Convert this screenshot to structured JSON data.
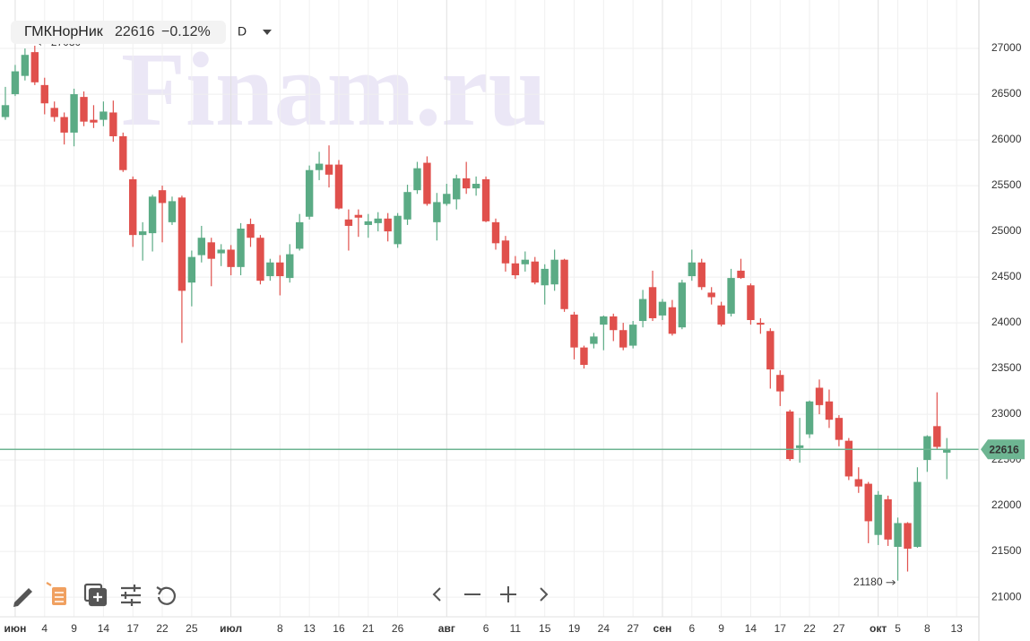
{
  "chart_data": {
    "type": "candlestick",
    "title": "ГМКНорНик",
    "price": 22616,
    "change": {
      "value": -0.12,
      "label": "−0.12%"
    },
    "interval": "D",
    "watermark": "Finam.ru",
    "categories": [
      null,
      "июн",
      null,
      null,
      "4",
      null,
      null,
      "9",
      null,
      null,
      "14",
      null,
      null,
      "17",
      null,
      null,
      "22",
      null,
      null,
      "25",
      null,
      null,
      null,
      "июл",
      null,
      null,
      null,
      null,
      "8",
      null,
      null,
      "13",
      null,
      null,
      "16",
      null,
      null,
      "21",
      null,
      null,
      "26",
      null,
      null,
      null,
      null,
      "авг",
      null,
      null,
      null,
      "6",
      null,
      null,
      "11",
      null,
      null,
      "15",
      null,
      null,
      "19",
      null,
      null,
      "24",
      null,
      null,
      "27",
      null,
      null,
      "сен",
      null,
      null,
      "6",
      null,
      null,
      "9",
      null,
      null,
      "14",
      null,
      null,
      "17",
      null,
      null,
      "22",
      null,
      null,
      "27",
      null,
      null,
      null,
      "окт",
      null,
      "5",
      null,
      null,
      "8",
      null,
      null,
      "13"
    ],
    "open": [
      26250,
      26500,
      26700,
      26960,
      26600,
      26350,
      26250,
      26080,
      26470,
      26220,
      26220,
      26300,
      26040,
      25570,
      24960,
      24980,
      25450,
      25100,
      25370,
      24440,
      24740,
      24880,
      24760,
      24800,
      24610,
      25080,
      24930,
      24510,
      24660,
      24490,
      24810,
      25160,
      25670,
      25730,
      25730,
      25130,
      25180,
      25070,
      25090,
      25140,
      24860,
      25130,
      25450,
      25750,
      25100,
      25300,
      25350,
      25580,
      25470,
      25570,
      25100,
      24900,
      24650,
      24640,
      24670,
      24410,
      24420,
      24690,
      24090,
      23730,
      23770,
      23980,
      24070,
      23920,
      23750,
      24020,
      24390,
      24080,
      24170,
      23950,
      24510,
      24660,
      24330,
      24190,
      24100,
      24570,
      24410,
      24000,
      23910,
      23430,
      23030,
      22630,
      22780,
      23290,
      23140,
      22960,
      22710,
      22290,
      22240,
      21680,
      22070,
      21550,
      21810,
      21550,
      22500,
      22870,
      22580,
      null
    ],
    "high": [
      26580,
      26820,
      27000,
      27030,
      26680,
      26420,
      26300,
      26560,
      26530,
      26380,
      26420,
      26430,
      26080,
      25600,
      25100,
      25400,
      25500,
      25380,
      25390,
      24790,
      25060,
      24930,
      24860,
      24850,
      25090,
      25140,
      24960,
      24700,
      24740,
      24860,
      25190,
      25720,
      25870,
      25940,
      25780,
      25240,
      25240,
      25190,
      25210,
      25200,
      25200,
      25510,
      25760,
      25820,
      25420,
      25520,
      25620,
      25760,
      25600,
      25600,
      25140,
      24950,
      24730,
      24780,
      24720,
      24640,
      24800,
      24700,
      24120,
      23750,
      23890,
      24080,
      24100,
      24000,
      24020,
      24360,
      24570,
      24260,
      24250,
      24470,
      24800,
      24700,
      24390,
      24230,
      24590,
      24700,
      24430,
      24050,
      23940,
      23480,
      23050,
      22960,
      23150,
      23380,
      23270,
      22990,
      22740,
      22420,
      22260,
      22160,
      22110,
      21870,
      21820,
      22420,
      22770,
      23240,
      22740,
      null
    ],
    "low": [
      26220,
      26480,
      26650,
      26600,
      26280,
      26200,
      25950,
      25930,
      26150,
      26130,
      26150,
      25980,
      25650,
      24830,
      24680,
      24780,
      24880,
      25070,
      23780,
      24180,
      24660,
      24400,
      24620,
      24520,
      24520,
      24830,
      24420,
      24460,
      24300,
      24440,
      24790,
      25130,
      25560,
      25480,
      25240,
      24790,
      24940,
      24930,
      25000,
      24890,
      24820,
      25070,
      25410,
      25280,
      24900,
      25280,
      25240,
      25410,
      25390,
      25100,
      24800,
      24560,
      24480,
      24560,
      24420,
      24200,
      24350,
      24120,
      23600,
      23500,
      23720,
      23700,
      23800,
      23700,
      23720,
      23950,
      24020,
      24030,
      23860,
      23930,
      24460,
      24360,
      24200,
      23960,
      24070,
      24480,
      23980,
      23880,
      23280,
      23090,
      22490,
      22470,
      22740,
      23000,
      22850,
      22650,
      22280,
      22140,
      21590,
      21570,
      21560,
      21180,
      21280,
      21540,
      22370,
      22620,
      22290,
      null
    ],
    "close": [
      26380,
      26750,
      26930,
      26630,
      26400,
      26250,
      26080,
      26500,
      26200,
      26190,
      26310,
      26040,
      25670,
      24960,
      25000,
      25380,
      25310,
      25330,
      24350,
      24720,
      24930,
      24700,
      24800,
      24610,
      25030,
      24930,
      24460,
      24660,
      24510,
      24750,
      25100,
      25670,
      25740,
      25620,
      25250,
      25060,
      25150,
      25110,
      25140,
      25000,
      25170,
      25430,
      25690,
      25300,
      25320,
      25410,
      25580,
      25470,
      25520,
      25110,
      24870,
      24650,
      24520,
      24690,
      24440,
      24590,
      24690,
      24150,
      23730,
      23540,
      23850,
      24070,
      23920,
      23730,
      23980,
      24260,
      24050,
      24230,
      23880,
      24440,
      24660,
      24390,
      24280,
      23980,
      24490,
      24490,
      24030,
      23980,
      23490,
      23250,
      22510,
      22660,
      23140,
      23100,
      22940,
      22720,
      22320,
      22210,
      21830,
      22120,
      21630,
      21810,
      21530,
      22260,
      22760,
      22643,
      22616,
      null
    ],
    "up_color": "#5bab85",
    "down_color": "#e0504c",
    "price_line": 22616,
    "price_line_color": "#6db592",
    "annotations": {
      "high": 27030,
      "low": 21180
    },
    "ylim": [
      20790,
      27530
    ],
    "yticks": [
      21000,
      21500,
      22000,
      22500,
      23000,
      23500,
      24000,
      24500,
      25000,
      25500,
      26000,
      26500,
      27000
    ],
    "grid": true
  }
}
